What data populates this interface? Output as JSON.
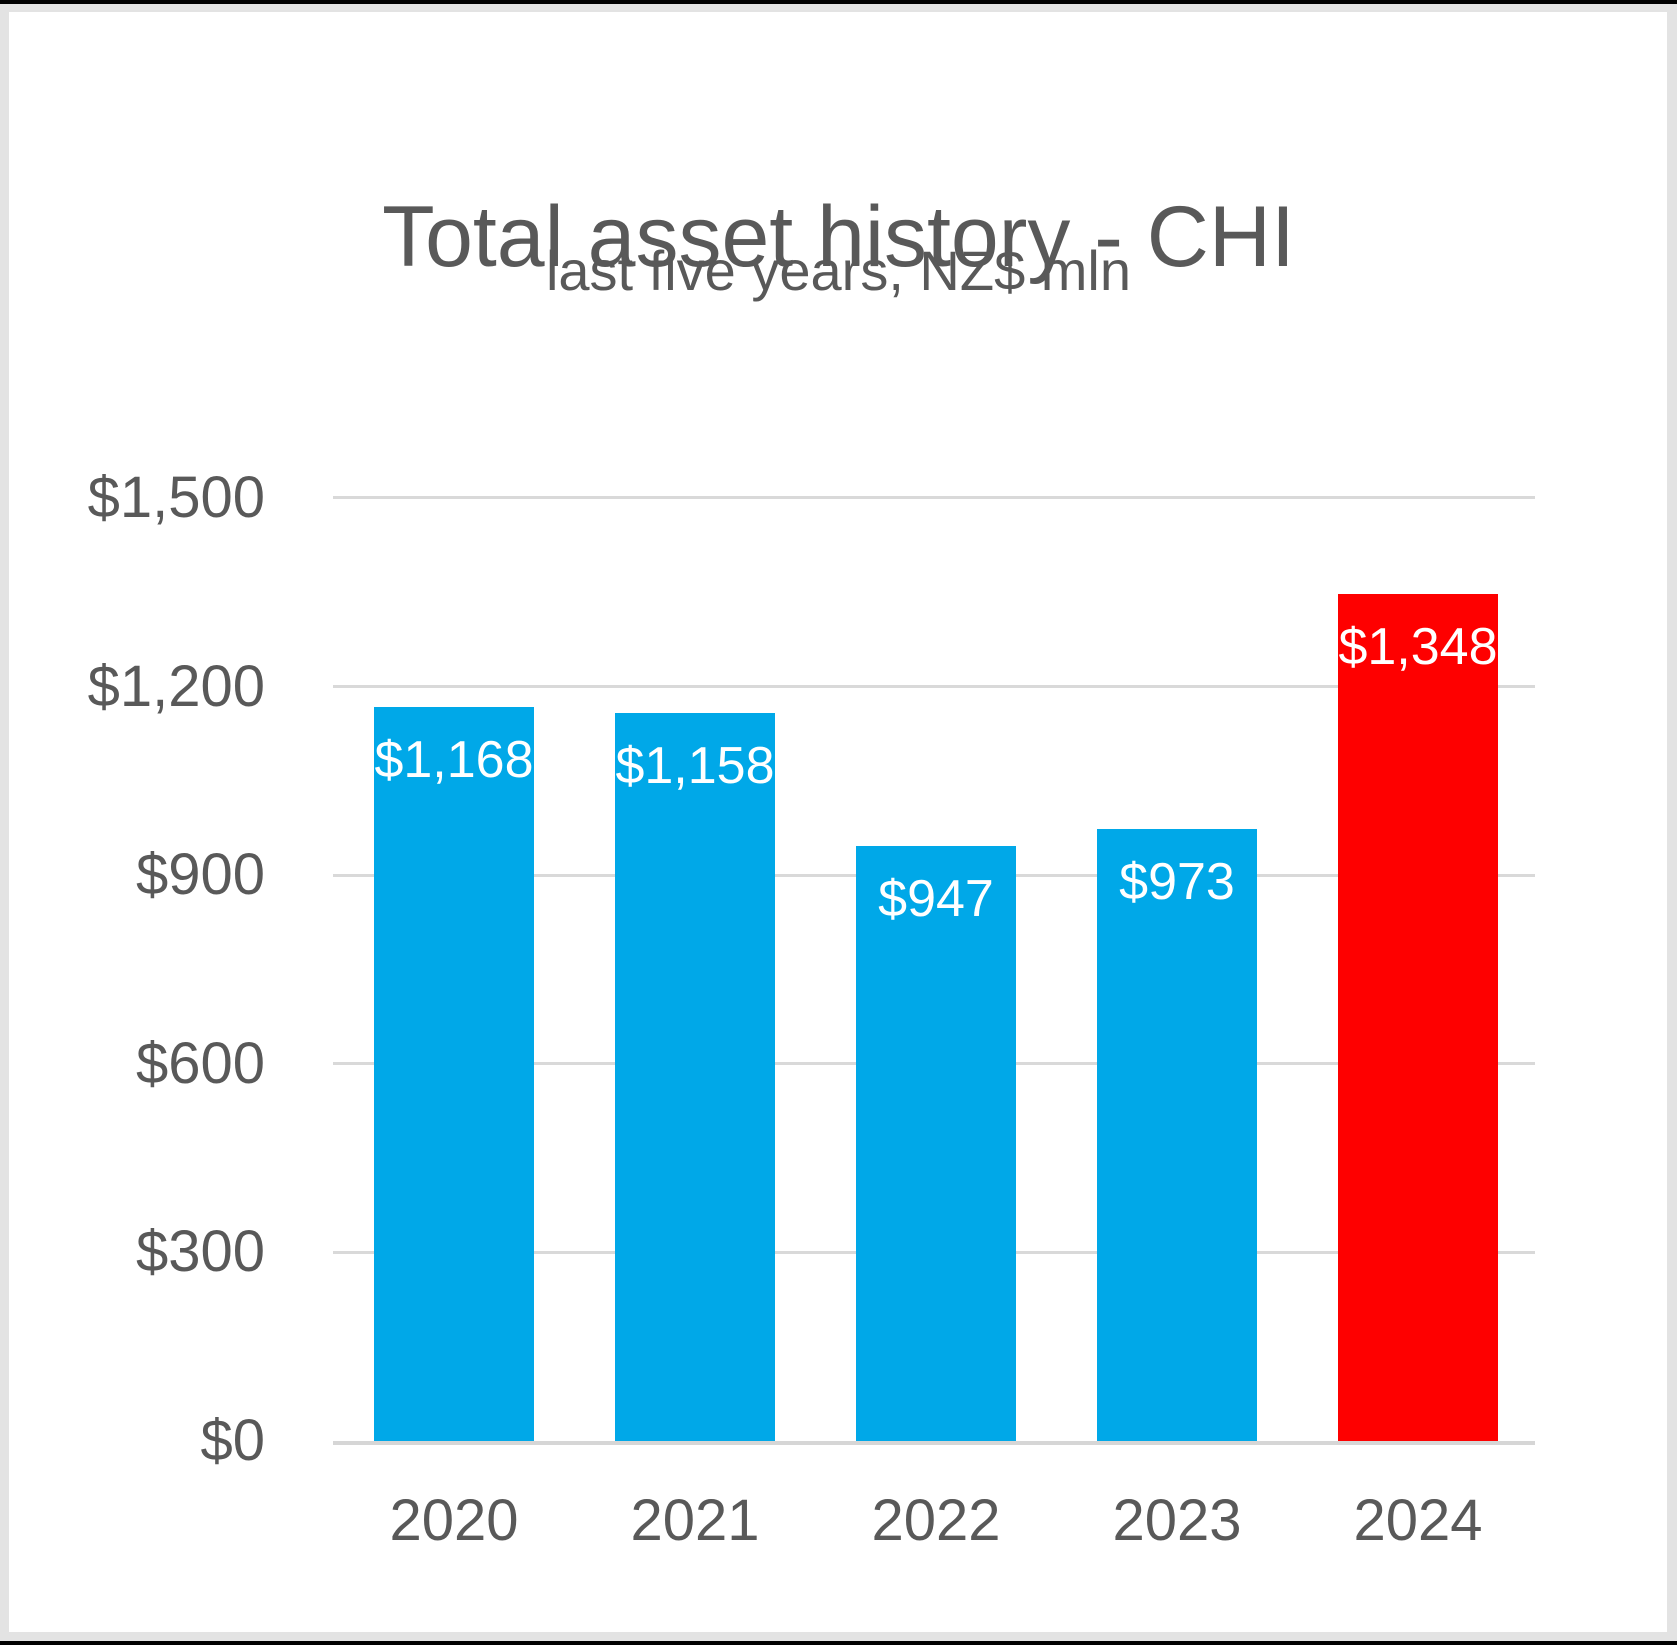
{
  "frame": {
    "outer_color": "#000000",
    "border_color": "#e3e3e3",
    "canvas_color": "#ffffff"
  },
  "chart_data": {
    "type": "bar",
    "title": "Total asset history - CHI",
    "subtitle": "last five years, NZ$ mln",
    "categories": [
      "2020",
      "2021",
      "2022",
      "2023",
      "2024"
    ],
    "values": [
      1168,
      1158,
      947,
      973,
      1348
    ],
    "value_labels": [
      "$1,168",
      "$1,158",
      "$947",
      "$973",
      "$1,348"
    ],
    "bar_colors": [
      "#00a8e8",
      "#00a8e8",
      "#00a8e8",
      "#00a8e8",
      "#fe0000"
    ],
    "highlight_index": 4,
    "y_axis": {
      "ylim": [
        0,
        1500
      ],
      "ticks": [
        {
          "value": 0,
          "label": "$0"
        },
        {
          "value": 300,
          "label": "$300"
        },
        {
          "value": 600,
          "label": "$600"
        },
        {
          "value": 900,
          "label": "$900"
        },
        {
          "value": 1200,
          "label": "$1,200"
        },
        {
          "value": 1500,
          "label": "$1,500"
        }
      ]
    },
    "grid": true,
    "legend_position": "none",
    "colors": {
      "text": "#595959",
      "grid": "#d9d9d9",
      "axis_line": "#d6d6d6",
      "value_label": "#ffffff"
    }
  }
}
